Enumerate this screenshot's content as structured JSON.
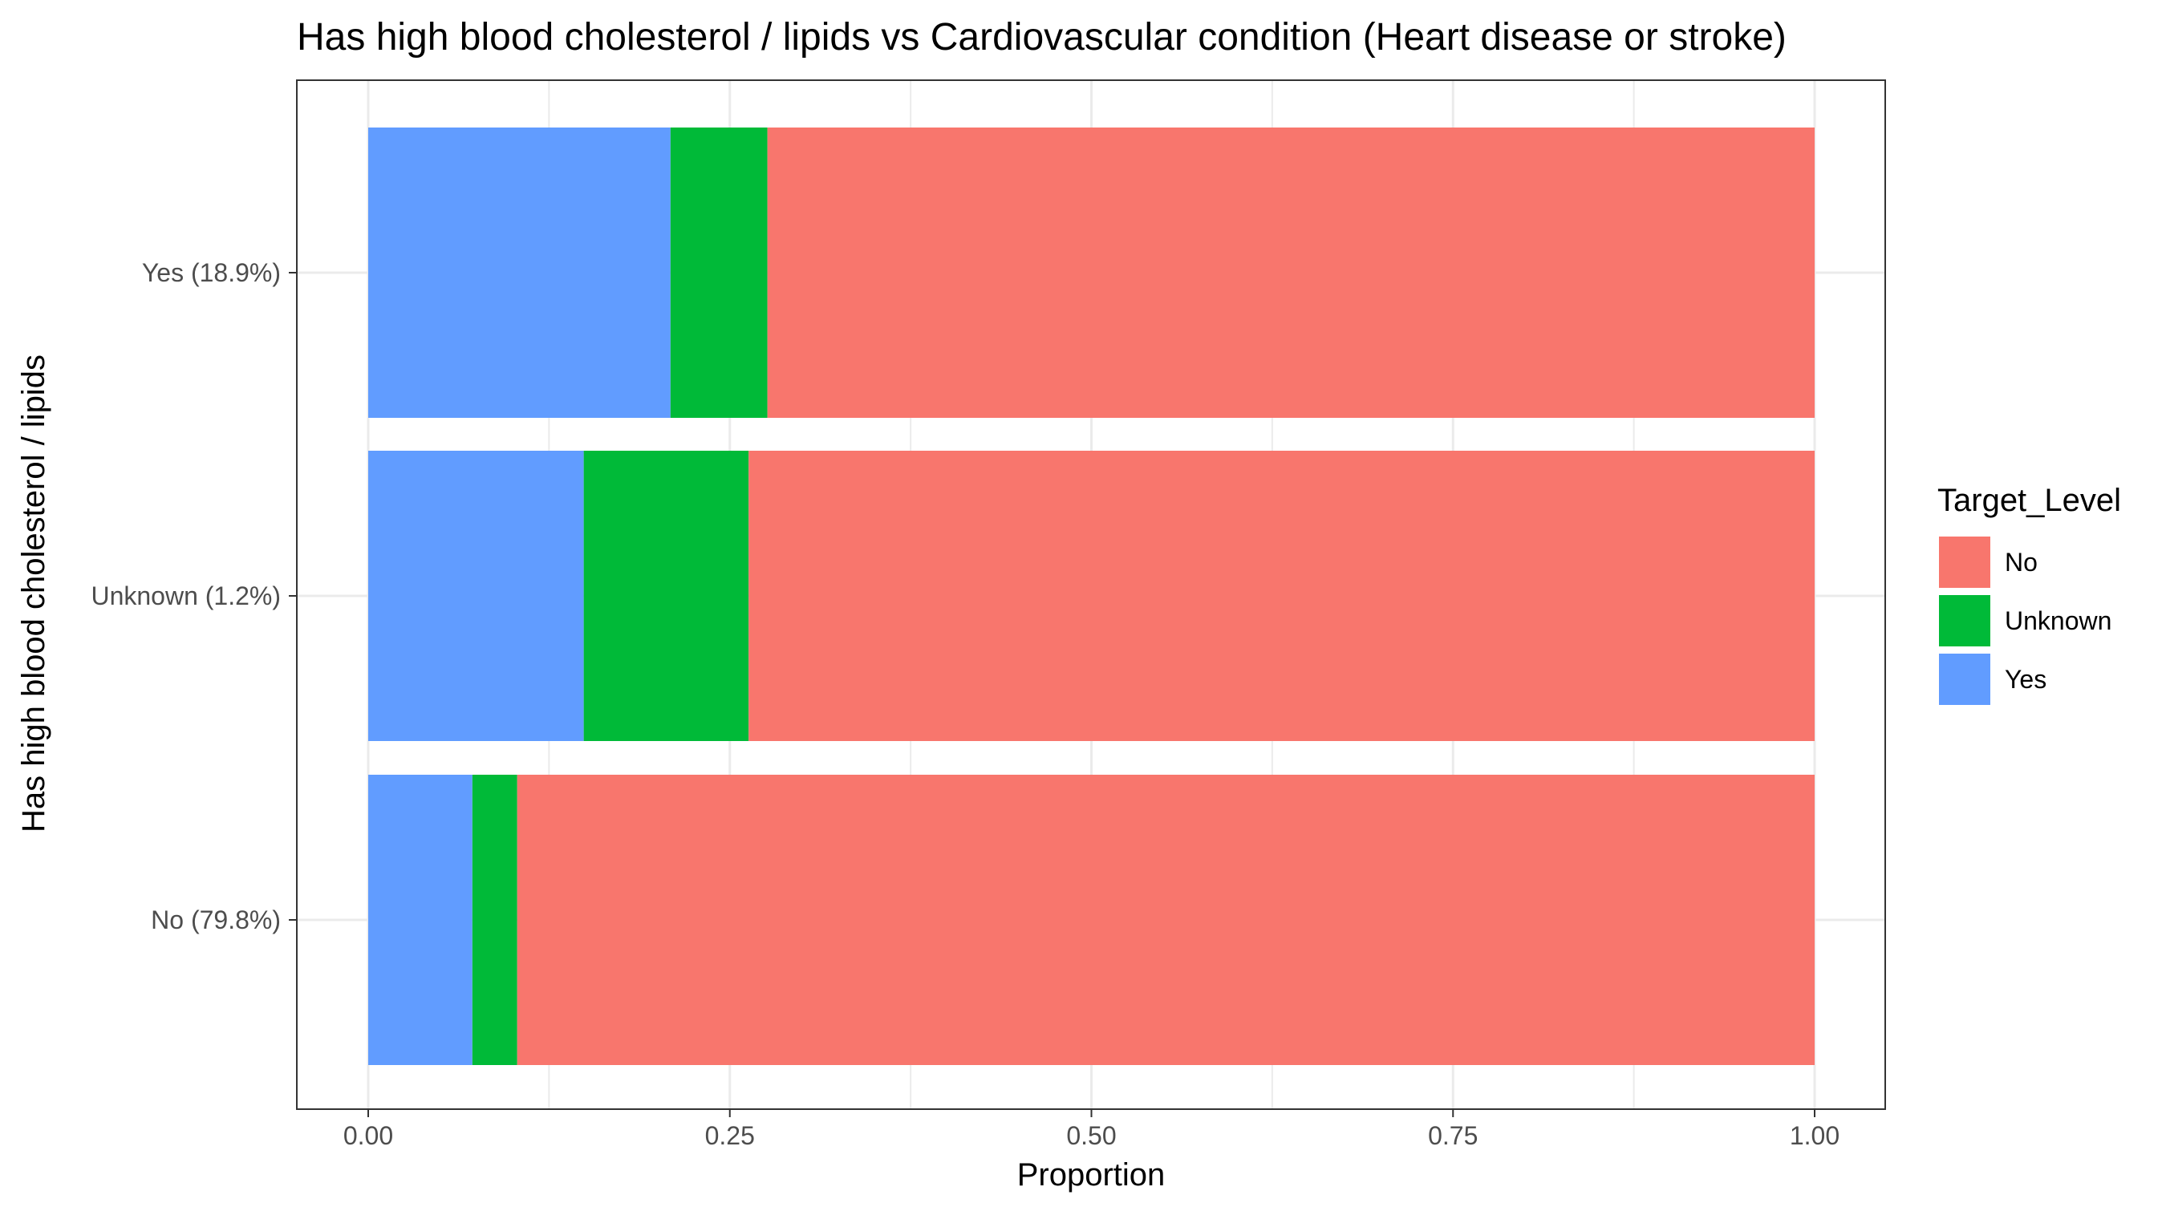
{
  "chart_data": {
    "type": "bar",
    "orientation": "horizontal",
    "stacked": true,
    "title": "Has high blood cholesterol / lipids vs Cardiovascular condition (Heart disease or stroke)",
    "xlabel": "Proportion",
    "ylabel": "Has high blood cholesterol / lipids",
    "xlim": [
      0,
      1
    ],
    "x_ticks": [
      0,
      0.25,
      0.5,
      0.75,
      1
    ],
    "x_tick_labels": [
      "0.00",
      "0.25",
      "0.50",
      "0.75",
      "1.00"
    ],
    "categories": [
      "No (79.8%)",
      "Unknown (1.2%)",
      "Yes (18.9%)"
    ],
    "series": [
      {
        "name": "Yes",
        "color": "#619CFF",
        "values": [
          0.072,
          0.149,
          0.209
        ]
      },
      {
        "name": "Unknown",
        "color": "#00BA38",
        "values": [
          0.031,
          0.114,
          0.067
        ]
      },
      {
        "name": "No",
        "color": "#F8766D",
        "values": [
          0.897,
          0.737,
          0.724
        ]
      }
    ],
    "legend": {
      "title": "Target_Level",
      "position": "right",
      "entries": [
        {
          "label": "No",
          "color": "#F8766D"
        },
        {
          "label": "Unknown",
          "color": "#00BA38"
        },
        {
          "label": "Yes",
          "color": "#619CFF"
        }
      ]
    },
    "grid": true,
    "theme": "bw"
  }
}
